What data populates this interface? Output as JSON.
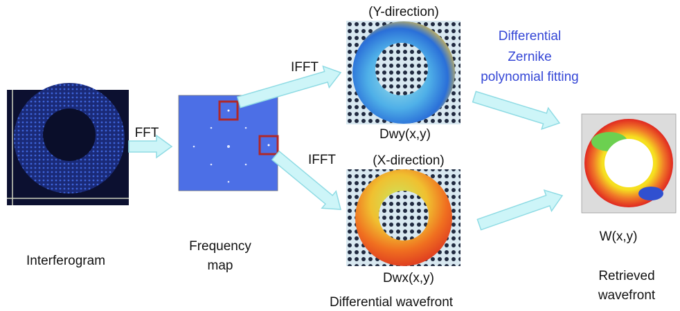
{
  "interferogram": {
    "label": "Interferogram"
  },
  "frequency_map": {
    "label": [
      "Frequency",
      "map"
    ]
  },
  "arrows": {
    "fft": "FFT",
    "ifft_top": "IFFT",
    "ifft_bottom": "IFFT",
    "fitting": [
      "Differential",
      "Zernike",
      "polynomial fitting"
    ]
  },
  "y_direction": {
    "title": "(Y-direction)",
    "caption": "Dwy(x,y)"
  },
  "x_direction": {
    "title": "(X-direction)",
    "caption": "Dwx(x,y)"
  },
  "differential_label": "Differential wavefront",
  "wavefront": {
    "caption": "W(x,y)",
    "label": [
      "Retrieved",
      "wavefront"
    ]
  }
}
